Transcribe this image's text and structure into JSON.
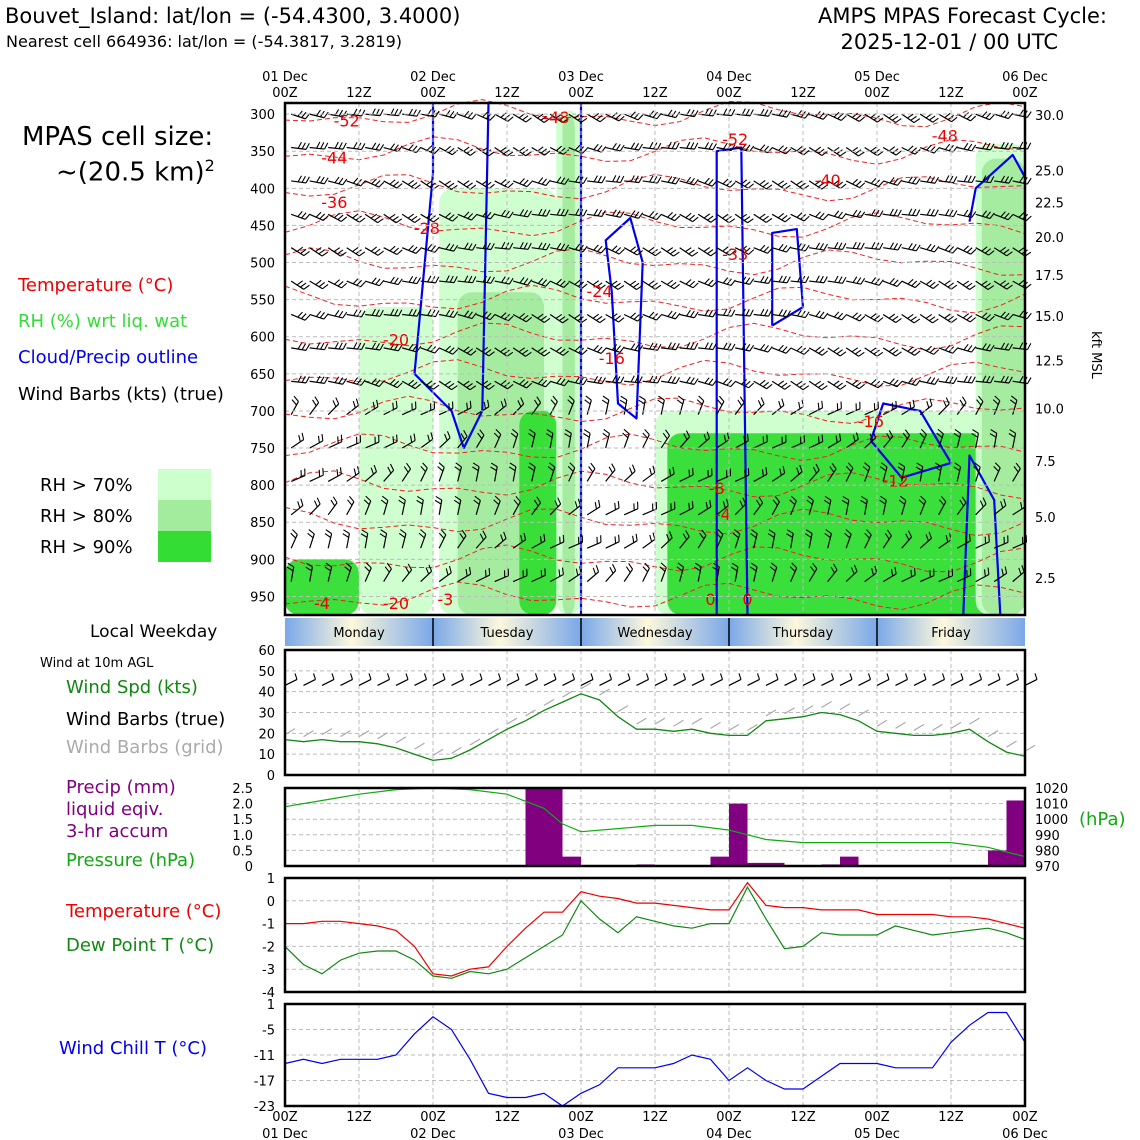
{
  "header": {
    "station": "Bouvet_Island: lat/lon = (-54.4300, 3.4000)",
    "nearest": "Nearest cell 664936: lat/lon = (-54.3817, 3.2819)",
    "cycle_label": "AMPS MPAS Forecast Cycle:",
    "cycle_time": "2025-12-01 / 00 UTC"
  },
  "cell_size": {
    "line1": "MPAS cell size:",
    "line2": "~(20.5 km)"
  },
  "cross_section_legend": {
    "temperature": "Temperature (°C)",
    "rh": "RH (%) wrt liq. wat",
    "cloud": "Cloud/Precip outline",
    "barbs": "Wind Barbs (kts) (true)"
  },
  "rh_legend": [
    {
      "label": "RH > 70%",
      "color": "#ccffcc"
    },
    {
      "label": "RH > 80%",
      "color": "#a3eb9d"
    },
    {
      "label": "RH > 90%",
      "color": "#33dd33"
    }
  ],
  "time_axis": {
    "top_dates": [
      "01 Dec",
      "02 Dec",
      "03 Dec",
      "04 Dec",
      "05 Dec",
      "06 Dec"
    ],
    "hour_labels": [
      "00Z",
      "12Z",
      "00Z",
      "12Z",
      "00Z",
      "12Z",
      "00Z",
      "12Z",
      "00Z",
      "12Z",
      "00Z"
    ],
    "bottom_dates": [
      "01 Dec",
      "02 Dec",
      "03 Dec",
      "04 Dec",
      "05 Dec",
      "06 Dec"
    ]
  },
  "weekday": {
    "title": "Local Weekday",
    "days": [
      "Monday",
      "Tuesday",
      "Wednesday",
      "Thursday",
      "Friday"
    ]
  },
  "wind_panel": {
    "note": "Wind at 10m AGL",
    "speed_label": "Wind Spd (kts)",
    "barbs_true": "Wind Barbs (true)",
    "barbs_grid": "Wind Barbs (grid)"
  },
  "precip_panel": {
    "line1": "Precip (mm)",
    "line2": "liquid eqiv.",
    "line3": "3-hr accum",
    "pressure_label": "Pressure (hPa)",
    "hpa_unit": "(hPa)"
  },
  "temp_panel": {
    "temp_label": "Temperature (°C)",
    "dew_label": "Dew Point T (°C)"
  },
  "chill_panel": {
    "label": "Wind Chill T (°C)"
  },
  "chart_data": [
    {
      "type": "heatmap",
      "title": "Vertical cross-section",
      "pressure_ticks": [
        300,
        350,
        400,
        450,
        500,
        550,
        600,
        650,
        700,
        750,
        800,
        850,
        900,
        950
      ],
      "kft_ticks": [
        "30.0",
        "25.0",
        "22.5",
        "20.0",
        "17.5",
        "15.0",
        "12.5",
        "10.0",
        "7.5",
        "5.0",
        "2.5"
      ],
      "kft_values": [
        30,
        25,
        22.5,
        20,
        17.5,
        15,
        12.5,
        10,
        7.5,
        5,
        2.5
      ],
      "ylabel_right": "kft MSL",
      "temp_labels": [
        {
          "text": "-52",
          "hour": 10,
          "p": 310
        },
        {
          "text": "-48",
          "hour": 44,
          "p": 305
        },
        {
          "text": "-52",
          "hour": 73,
          "p": 335
        },
        {
          "text": "-48",
          "hour": 107,
          "p": 330
        },
        {
          "text": "-44",
          "hour": 8,
          "p": 360
        },
        {
          "text": "-40",
          "hour": 88,
          "p": 390
        },
        {
          "text": "-36",
          "hour": 8,
          "p": 420
        },
        {
          "text": "-28",
          "hour": 23,
          "p": 455
        },
        {
          "text": "-33",
          "hour": 73,
          "p": 490
        },
        {
          "text": "-24",
          "hour": 51,
          "p": 540
        },
        {
          "text": "-20",
          "hour": 18,
          "p": 605
        },
        {
          "text": "-16",
          "hour": 53,
          "p": 630
        },
        {
          "text": "-16",
          "hour": 95,
          "p": 715
        },
        {
          "text": "-12",
          "hour": 99,
          "p": 795
        },
        {
          "text": "-8",
          "hour": 70,
          "p": 805
        },
        {
          "text": "-4",
          "hour": 71,
          "p": 840
        },
        {
          "text": "-4",
          "hour": 6,
          "p": 960
        },
        {
          "text": "-20",
          "hour": 18,
          "p": 960
        },
        {
          "text": "-3",
          "hour": 26,
          "p": 955
        },
        {
          "text": "0",
          "hour": 69,
          "p": 955
        },
        {
          "text": "0",
          "hour": 75,
          "p": 955
        }
      ],
      "rh_blobs": [
        {
          "level": 70,
          "h0": 12,
          "h1": 24,
          "p0": 560,
          "p1": 975
        },
        {
          "level": 70,
          "h0": 25,
          "h1": 44,
          "p0": 400,
          "p1": 975
        },
        {
          "level": 80,
          "h0": 28,
          "h1": 42,
          "p0": 540,
          "p1": 975
        },
        {
          "level": 70,
          "h0": 44,
          "h1": 48,
          "p0": 295,
          "p1": 975
        },
        {
          "level": 80,
          "h0": 45,
          "h1": 47,
          "p0": 300,
          "p1": 975
        },
        {
          "level": 70,
          "h0": 60,
          "h1": 120,
          "p0": 700,
          "p1": 975
        },
        {
          "level": 90,
          "h0": 62,
          "h1": 120,
          "p0": 730,
          "p1": 975
        },
        {
          "level": 70,
          "h0": 112,
          "h1": 120,
          "p0": 340,
          "p1": 975
        },
        {
          "level": 80,
          "h0": 113,
          "h1": 120,
          "p0": 360,
          "p1": 975
        },
        {
          "level": 90,
          "h0": 38,
          "h1": 44,
          "p0": 700,
          "p1": 975
        },
        {
          "level": 90,
          "h0": 0,
          "h1": 12,
          "p0": 900,
          "p1": 975
        }
      ]
    },
    {
      "type": "line",
      "title": "Wind Spd (kts)",
      "x_hours": [
        0,
        3,
        6,
        9,
        12,
        15,
        18,
        21,
        24,
        27,
        30,
        33,
        36,
        39,
        42,
        45,
        48,
        51,
        54,
        57,
        60,
        63,
        66,
        69,
        72,
        75,
        78,
        81,
        84,
        87,
        90,
        93,
        96,
        99,
        102,
        105,
        108,
        111,
        114,
        117,
        120
      ],
      "values": [
        17,
        16,
        17,
        16,
        16,
        15,
        13,
        10,
        7,
        8,
        12,
        17,
        22,
        26,
        31,
        35,
        39,
        36,
        28,
        22,
        22,
        21,
        22,
        20,
        19,
        19,
        26,
        27,
        28,
        30,
        29,
        26,
        21,
        20,
        19,
        19,
        20,
        22,
        16,
        11,
        9
      ],
      "ylim": [
        0,
        60
      ],
      "yticks": [
        0,
        10,
        20,
        30,
        40,
        50,
        60
      ]
    },
    {
      "type": "bar",
      "title": "Precip (mm) 3-hr accum",
      "x_hours": [
        42,
        45,
        48,
        60,
        72,
        75,
        78,
        81,
        90,
        93,
        117,
        120
      ],
      "values": [
        2.5,
        2.5,
        0.3,
        0.05,
        0.3,
        2.0,
        0.1,
        0.1,
        0.05,
        0.3,
        0.5,
        2.1
      ],
      "ylim": [
        0,
        2.5
      ],
      "yticks": [
        "0",
        "0.5",
        "1.0",
        "1.5",
        "2.0",
        "2.5"
      ],
      "pressure": {
        "x_hours": [
          0,
          6,
          12,
          18,
          24,
          30,
          36,
          42,
          45,
          48,
          54,
          60,
          66,
          72,
          78,
          84,
          90,
          96,
          102,
          108,
          114,
          120
        ],
        "values": [
          1008,
          1012,
          1016,
          1019,
          1020,
          1019,
          1016,
          1007,
          997,
          992,
          994,
          996,
          996,
          993,
          987,
          985,
          985,
          985,
          985,
          985,
          982,
          976
        ],
        "ylim": [
          970,
          1020
        ],
        "yticks": [
          1020,
          1010,
          1000,
          990,
          980,
          970
        ]
      }
    },
    {
      "type": "line",
      "title": "Temperature / Dew Point",
      "x_hours": [
        0,
        3,
        6,
        9,
        12,
        15,
        18,
        21,
        24,
        27,
        30,
        33,
        36,
        39,
        42,
        45,
        48,
        51,
        54,
        57,
        60,
        63,
        66,
        69,
        72,
        75,
        78,
        81,
        84,
        87,
        90,
        93,
        96,
        99,
        102,
        105,
        108,
        111,
        114,
        117,
        120
      ],
      "series": [
        {
          "name": "Temperature",
          "values": [
            -1.0,
            -1.0,
            -0.9,
            -0.9,
            -1.0,
            -1.1,
            -1.3,
            -2.0,
            -3.2,
            -3.3,
            -3.0,
            -2.9,
            -2.0,
            -1.2,
            -0.5,
            -0.5,
            0.4,
            0.2,
            0.1,
            -0.1,
            -0.1,
            -0.2,
            -0.3,
            -0.4,
            -0.4,
            0.8,
            -0.2,
            -0.3,
            -0.3,
            -0.4,
            -0.4,
            -0.4,
            -0.6,
            -0.6,
            -0.6,
            -0.6,
            -0.7,
            -0.7,
            -0.8,
            -1.0,
            -1.2
          ]
        },
        {
          "name": "Dew Point",
          "values": [
            -2.0,
            -2.8,
            -3.2,
            -2.6,
            -2.3,
            -2.2,
            -2.2,
            -2.6,
            -3.3,
            -3.4,
            -3.1,
            -3.2,
            -3.0,
            -2.5,
            -2.0,
            -1.5,
            0.0,
            -0.8,
            -1.4,
            -0.7,
            -0.9,
            -1.1,
            -1.2,
            -1.0,
            -1.0,
            0.6,
            -0.8,
            -2.1,
            -2.0,
            -1.4,
            -1.5,
            -1.5,
            -1.5,
            -1.1,
            -1.3,
            -1.5,
            -1.4,
            -1.3,
            -1.2,
            -1.4,
            -1.7
          ]
        }
      ],
      "ylim": [
        -4,
        1
      ],
      "yticks": [
        1,
        0,
        -1,
        -2,
        -3,
        -4
      ]
    },
    {
      "type": "line",
      "title": "Wind Chill T (°C)",
      "x_hours": [
        0,
        3,
        6,
        9,
        12,
        15,
        18,
        21,
        24,
        27,
        30,
        33,
        36,
        39,
        42,
        45,
        48,
        51,
        54,
        57,
        60,
        63,
        66,
        69,
        72,
        75,
        78,
        81,
        84,
        87,
        90,
        93,
        96,
        99,
        102,
        105,
        108,
        111,
        114,
        117,
        120
      ],
      "values": [
        -13,
        -12,
        -13,
        -12,
        -12,
        -12,
        -11,
        -6,
        -2,
        -5,
        -12,
        -20,
        -21,
        -21,
        -20,
        -23,
        -20,
        -18,
        -14,
        -14,
        -14,
        -13,
        -11,
        -12,
        -17,
        -14,
        -17,
        -19,
        -19,
        -16,
        -13,
        -13,
        -13,
        -14,
        -14,
        -14,
        -8,
        -4,
        -1,
        -1,
        -8
      ],
      "ylim": [
        -23,
        1
      ],
      "yticks": [
        1,
        -5,
        -11,
        -17,
        -23
      ]
    }
  ]
}
